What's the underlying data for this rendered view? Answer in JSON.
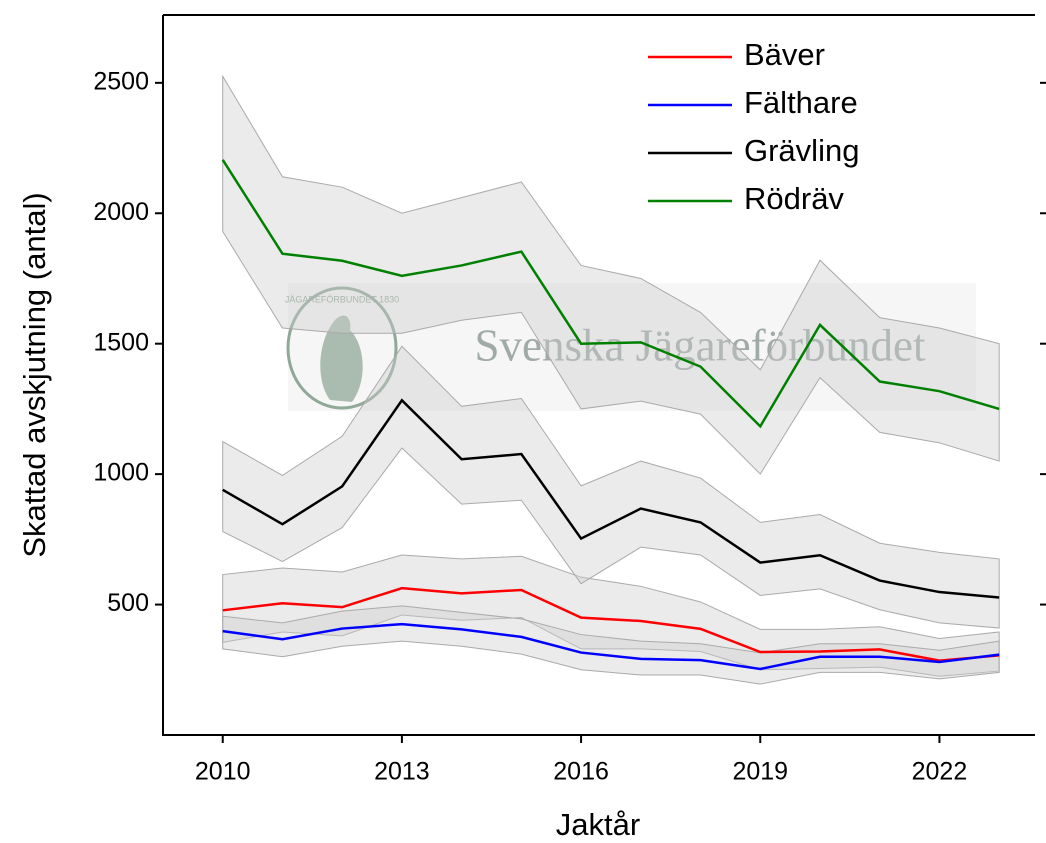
{
  "chart_data": {
    "type": "line",
    "xlabel": "Jaktår",
    "ylabel": "Skattad avskjutning (antal)",
    "watermark": "Svenska Jägareförbundet",
    "watermark_logo": "JÄGAREFÖRBUNDET 1830",
    "x": [
      2010,
      2011,
      2012,
      2013,
      2014,
      2015,
      2016,
      2017,
      2018,
      2019,
      2020,
      2021,
      2022,
      2023
    ],
    "xlim": [
      2009,
      2023.6
    ],
    "xticks": [
      2010,
      2013,
      2016,
      2019,
      2022
    ],
    "ylim": [
      0,
      2760
    ],
    "yticks": [
      500,
      1000,
      1500,
      2000,
      2500
    ],
    "legend": "upper right",
    "band_color": "#cccccc",
    "series": [
      {
        "name": "Bäver",
        "color": "#ff0000",
        "values": [
          478,
          505,
          490,
          563,
          543,
          556,
          450,
          437,
          407,
          318,
          320,
          328,
          285,
          305
        ],
        "upper": [
          615,
          640,
          625,
          690,
          675,
          685,
          605,
          570,
          510,
          405,
          405,
          415,
          370,
          395
        ],
        "lower": [
          355,
          395,
          380,
          460,
          440,
          450,
          330,
          330,
          320,
          250,
          255,
          260,
          225,
          245
        ]
      },
      {
        "name": "Fälthare",
        "color": "#0000ff",
        "values": [
          398,
          367,
          408,
          425,
          405,
          376,
          316,
          292,
          287,
          253,
          300,
          300,
          280,
          308
        ],
        "upper": [
          455,
          430,
          475,
          495,
          470,
          445,
          385,
          360,
          350,
          315,
          350,
          350,
          325,
          360
        ],
        "lower": [
          330,
          300,
          340,
          360,
          340,
          310,
          250,
          230,
          230,
          195,
          240,
          240,
          215,
          240
        ]
      },
      {
        "name": "Grävling",
        "color": "#000000",
        "values": [
          940,
          808,
          953,
          1283,
          1057,
          1077,
          753,
          868,
          815,
          661,
          689,
          592,
          548,
          527
        ],
        "upper": [
          1125,
          995,
          1145,
          1490,
          1260,
          1290,
          955,
          1050,
          985,
          815,
          845,
          735,
          700,
          675
        ],
        "lower": [
          780,
          665,
          795,
          1100,
          885,
          900,
          580,
          720,
          690,
          535,
          560,
          480,
          430,
          410
        ]
      },
      {
        "name": "Rödräv",
        "color": "#008000",
        "values": [
          2205,
          1845,
          1818,
          1760,
          1800,
          1853,
          1500,
          1505,
          1412,
          1183,
          1572,
          1355,
          1318,
          1250
        ],
        "upper": [
          2525,
          2140,
          2100,
          2000,
          2060,
          2120,
          1800,
          1750,
          1620,
          1400,
          1820,
          1600,
          1560,
          1500
        ],
        "lower": [
          1930,
          1560,
          1540,
          1540,
          1590,
          1620,
          1250,
          1280,
          1230,
          1000,
          1370,
          1160,
          1120,
          1050
        ]
      }
    ]
  }
}
